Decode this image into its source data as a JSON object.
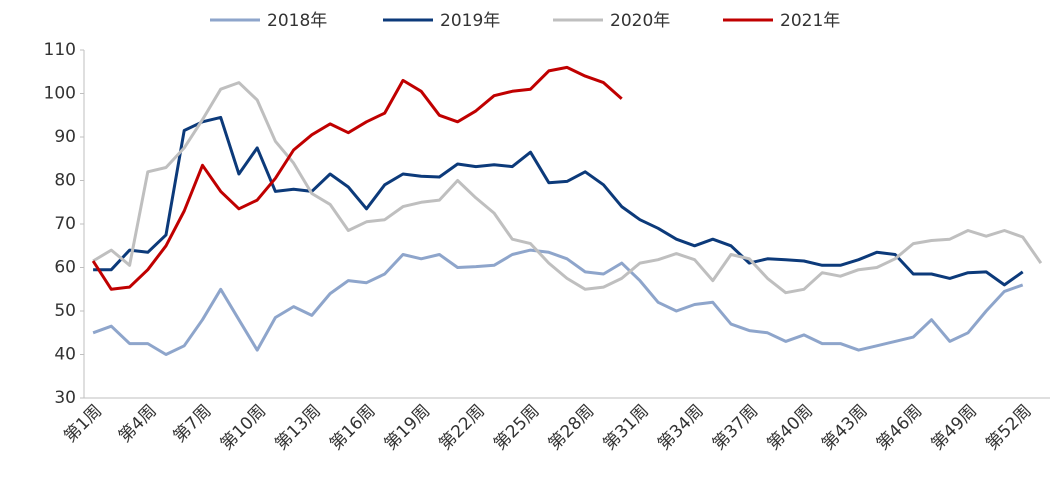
{
  "chart_data": {
    "type": "line",
    "categories": [
      "第1周",
      null,
      null,
      "第4周",
      null,
      null,
      "第7周",
      null,
      null,
      "第10周",
      null,
      null,
      "第13周",
      null,
      null,
      "第16周",
      null,
      null,
      "第19周",
      null,
      null,
      "第22周",
      null,
      null,
      "第25周",
      null,
      null,
      "第28周",
      null,
      null,
      "第31周",
      null,
      null,
      "第34周",
      null,
      null,
      "第37周",
      null,
      null,
      "第40周",
      null,
      null,
      "第43周",
      null,
      null,
      "第46周",
      null,
      null,
      "第49周",
      null,
      null,
      "第52周",
      null
    ],
    "series": [
      {
        "name": "2018年",
        "color": "#8ea5cb",
        "values": [
          45,
          46.5,
          42.5,
          42.5,
          40,
          42,
          48,
          55,
          48,
          41,
          48.5,
          51,
          49,
          54,
          57,
          56.5,
          58.5,
          63,
          62,
          63,
          60,
          60.2,
          60.5,
          63,
          64,
          63.5,
          62,
          59,
          58.5,
          61,
          57,
          52,
          50,
          51.5,
          52,
          47,
          45.5,
          45,
          43,
          44.5,
          42.5,
          42.5,
          41,
          42,
          43,
          44,
          48,
          43,
          45,
          50,
          54.5,
          56,
          null
        ]
      },
      {
        "name": "2019年",
        "color": "#0c3a7a",
        "values": [
          59.5,
          59.5,
          64,
          63.5,
          67.5,
          91.5,
          93.5,
          94.5,
          81.5,
          87.5,
          77.5,
          78,
          77.5,
          81.5,
          78.5,
          73.5,
          79,
          81.5,
          81,
          80.8,
          83.8,
          83.2,
          83.6,
          83.2,
          86.5,
          79.5,
          79.8,
          82,
          79,
          74,
          71,
          69,
          66.5,
          65,
          66.5,
          65,
          61,
          62,
          61.8,
          61.5,
          60.5,
          60.5,
          61.8,
          63.5,
          63,
          58.5,
          58.5,
          57.5,
          58.8,
          59,
          56,
          59,
          null
        ]
      },
      {
        "name": "2020年",
        "color": "#bfbfbf",
        "values": [
          61.5,
          64,
          60.5,
          82,
          83,
          87.5,
          94,
          101,
          102.5,
          98.5,
          89,
          84,
          77,
          74.5,
          68.5,
          70.5,
          71,
          74,
          75,
          75.5,
          80,
          76,
          72.5,
          66.5,
          65.5,
          61,
          57.5,
          55,
          55.5,
          57.5,
          61,
          61.8,
          63.2,
          61.8,
          57,
          63,
          62,
          57.5,
          54.2,
          55,
          58.8,
          58,
          59.5,
          60,
          62,
          65.5,
          66.2,
          66.5,
          68.5,
          67.2,
          68.5,
          67,
          61
        ]
      },
      {
        "name": "2021年",
        "color": "#c00000",
        "values": [
          61.5,
          55,
          55.5,
          59.5,
          65,
          73,
          83.5,
          77.5,
          73.5,
          75.5,
          80.5,
          87,
          90.5,
          93,
          91,
          93.5,
          95.5,
          103,
          100.5,
          95,
          93.5,
          96,
          99.5,
          100.5,
          101,
          105.2,
          106,
          104,
          102.5,
          98.8,
          null,
          null,
          null,
          null,
          null,
          null,
          null,
          null,
          null,
          null,
          null,
          null,
          null,
          null,
          null,
          null,
          null,
          null,
          null,
          null,
          null,
          null,
          null
        ]
      }
    ],
    "ylim": [
      30,
      110
    ],
    "yticks": [
      30,
      40,
      50,
      60,
      70,
      80,
      90,
      100,
      110
    ],
    "grid": false,
    "legend": "top"
  }
}
